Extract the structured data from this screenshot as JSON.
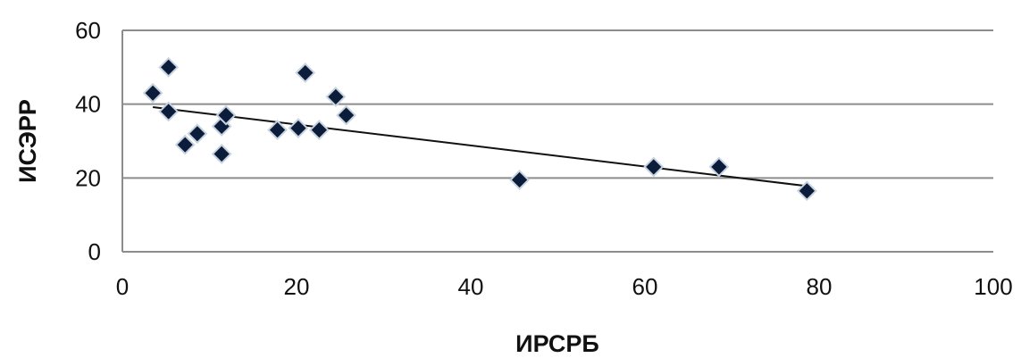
{
  "chart_data": {
    "type": "scatter",
    "xlabel": "ИРСРБ",
    "ylabel": "ИСЭРР",
    "xlim": [
      0,
      100
    ],
    "ylim": [
      0,
      60
    ],
    "x_ticks": [
      "0",
      "20",
      "40",
      "60",
      "80",
      "100"
    ],
    "y_ticks": [
      "0",
      "20",
      "40",
      "60"
    ],
    "grid": "horizontal",
    "legend": "none",
    "marker": "diamond",
    "points": [
      {
        "x": 3.5,
        "y": 43
      },
      {
        "x": 5.3,
        "y": 50
      },
      {
        "x": 5.3,
        "y": 38
      },
      {
        "x": 7.2,
        "y": 29
      },
      {
        "x": 8.6,
        "y": 32
      },
      {
        "x": 11.4,
        "y": 34
      },
      {
        "x": 11.9,
        "y": 37
      },
      {
        "x": 11.4,
        "y": 26.5
      },
      {
        "x": 17.8,
        "y": 33
      },
      {
        "x": 20.2,
        "y": 33.5
      },
      {
        "x": 21,
        "y": 48.5
      },
      {
        "x": 22.6,
        "y": 33
      },
      {
        "x": 24.5,
        "y": 42
      },
      {
        "x": 25.7,
        "y": 37
      },
      {
        "x": 45.6,
        "y": 19.5
      },
      {
        "x": 61,
        "y": 23
      },
      {
        "x": 68.5,
        "y": 23
      },
      {
        "x": 78.6,
        "y": 16.5
      }
    ],
    "trendline": {
      "type": "linear",
      "x": [
        3.5,
        78.6
      ],
      "y": [
        39.2,
        17.8
      ]
    },
    "colors": {
      "marker_fill": "#0b1d3a",
      "marker_stroke": "#c8d3e0",
      "trendline": "#111111",
      "grid": "#8c8c8c",
      "axis": "#8c8c8c",
      "text": "#111111"
    }
  }
}
